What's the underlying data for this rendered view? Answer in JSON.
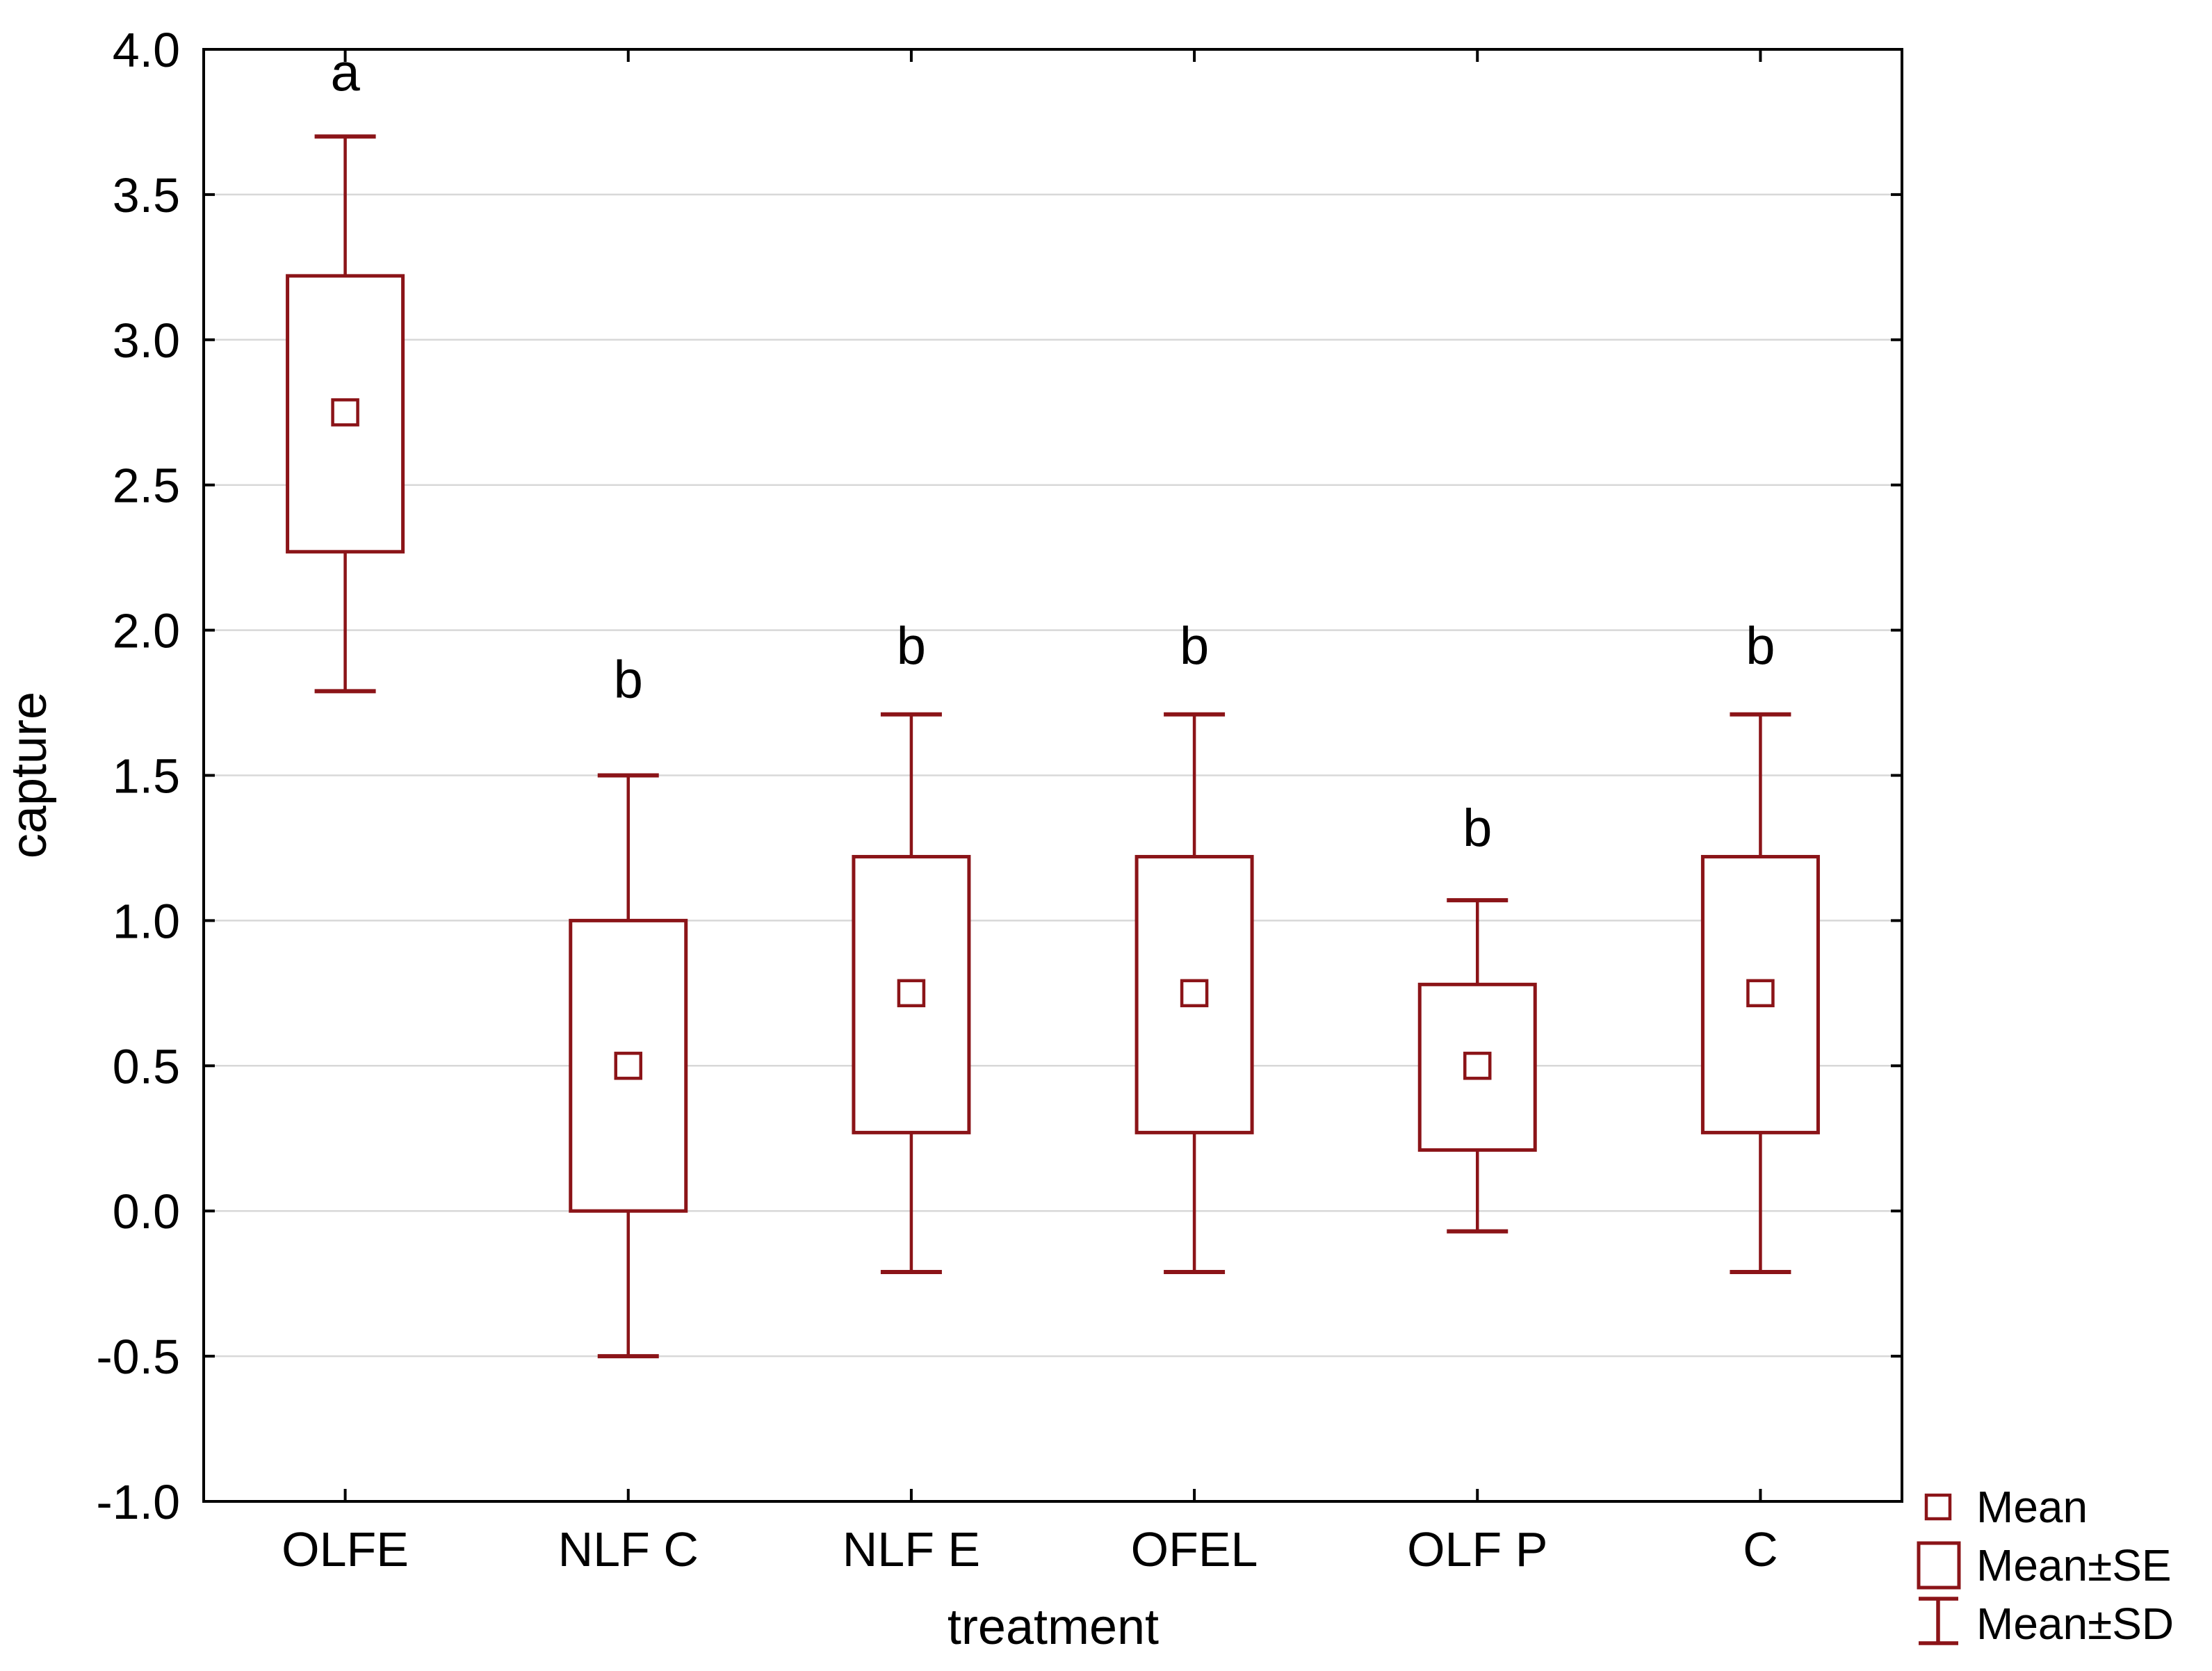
{
  "chart_data": {
    "type": "box",
    "title": "",
    "xlabel": "treatment",
    "ylabel": "capture",
    "categories": [
      "OLFE",
      "NLF C",
      "NLF E",
      "OFEL",
      "OLF P",
      "C"
    ],
    "ylim": [
      -1.0,
      4.0
    ],
    "ytick_step": 0.5,
    "yticks": [
      4.0,
      3.5,
      3.0,
      2.5,
      2.0,
      1.5,
      1.0,
      0.5,
      0.0,
      -0.5,
      -1.0
    ],
    "grid": true,
    "legend_position": "bottom-right-outside",
    "series": [
      {
        "category": "OLFE",
        "letter": "a",
        "mean": 2.75,
        "se_low": 2.27,
        "se_high": 3.22,
        "sd_low": 1.79,
        "sd_high": 3.7
      },
      {
        "category": "NLF C",
        "letter": "b",
        "mean": 0.5,
        "se_low": 0.0,
        "se_high": 1.0,
        "sd_low": -0.5,
        "sd_high": 1.5
      },
      {
        "category": "NLF E",
        "letter": "b",
        "mean": 0.75,
        "se_low": 0.27,
        "se_high": 1.22,
        "sd_low": -0.21,
        "sd_high": 1.71
      },
      {
        "category": "OFEL",
        "letter": "b",
        "mean": 0.75,
        "se_low": 0.27,
        "se_high": 1.22,
        "sd_low": -0.21,
        "sd_high": 1.71
      },
      {
        "category": "OLF P",
        "letter": "b",
        "mean": 0.5,
        "se_low": 0.21,
        "se_high": 0.78,
        "sd_low": -0.07,
        "sd_high": 1.07
      },
      {
        "category": "C",
        "letter": "b",
        "mean": 0.75,
        "se_low": 0.27,
        "se_high": 1.22,
        "sd_low": -0.21,
        "sd_high": 1.71
      }
    ],
    "legend": [
      {
        "icon": "mean-square-icon",
        "label": "Mean"
      },
      {
        "icon": "se-box-icon",
        "label": "Mean±SE"
      },
      {
        "icon": "sd-whisker-icon",
        "label": "Mean±SD"
      }
    ],
    "colors": {
      "series_stroke": "#8B1418",
      "grid": "#D8D8D8",
      "axis": "#000000",
      "text": "#000000",
      "background": "#FFFFFF"
    }
  }
}
